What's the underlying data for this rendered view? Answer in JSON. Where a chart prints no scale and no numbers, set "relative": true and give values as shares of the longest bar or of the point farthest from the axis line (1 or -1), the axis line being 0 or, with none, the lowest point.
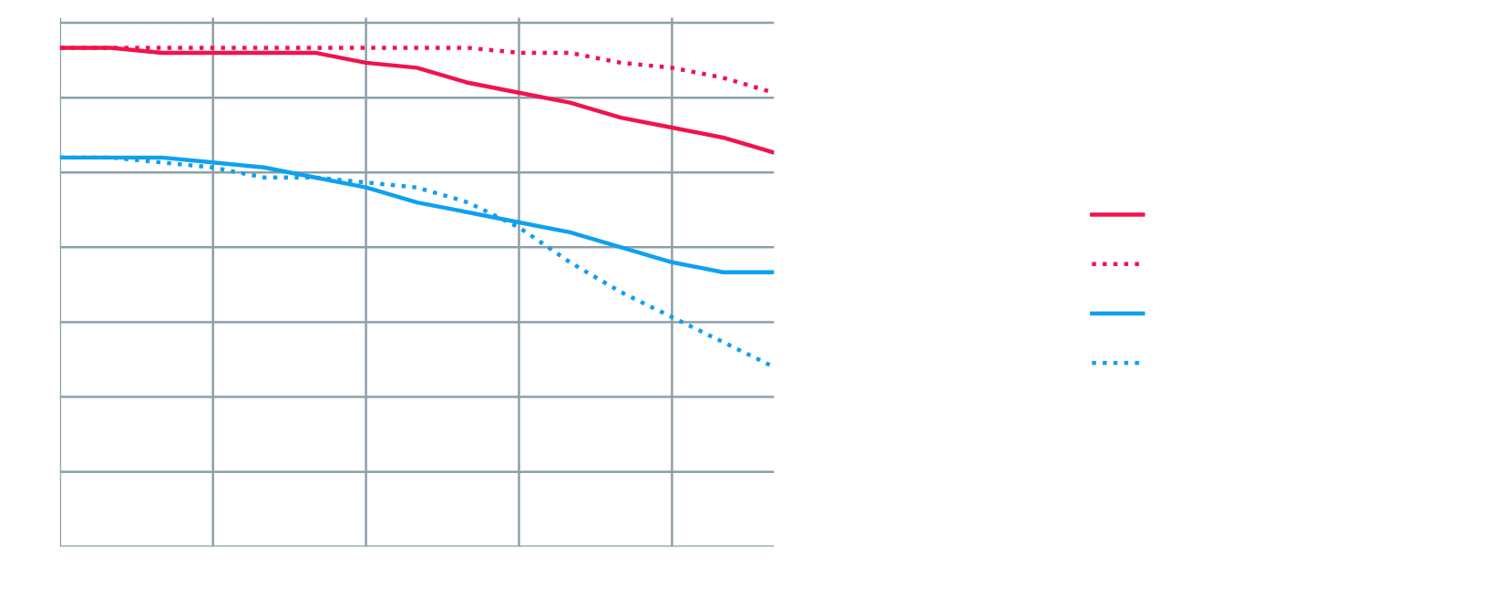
{
  "chart_data": {
    "type": "line",
    "relative": true,
    "categories": [
      null,
      null,
      null,
      null,
      null,
      null,
      null,
      null,
      null,
      null,
      null,
      null,
      null,
      null,
      null
    ],
    "series": [
      {
        "color": "#f0134d",
        "line_style": "solid",
        "values": [
          1.0,
          1.0,
          0.99,
          0.99,
          0.99,
          0.99,
          0.97,
          0.96,
          0.93,
          0.91,
          0.89,
          0.86,
          0.84,
          0.82,
          0.79
        ]
      },
      {
        "color": "#f0134d",
        "line_style": "dotted",
        "values": [
          1.0,
          1.0,
          1.0,
          1.0,
          1.0,
          1.0,
          1.0,
          1.0,
          1.0,
          0.99,
          0.99,
          0.97,
          0.96,
          0.94,
          0.91
        ]
      },
      {
        "color": "#0fa0f0",
        "line_style": "solid",
        "values": [
          0.78,
          0.78,
          0.78,
          0.77,
          0.76,
          0.74,
          0.72,
          0.69,
          0.67,
          0.65,
          0.63,
          0.6,
          0.57,
          0.55,
          0.55
        ]
      },
      {
        "color": "#0fa0f0",
        "line_style": "dotted",
        "values": [
          0.78,
          0.78,
          0.77,
          0.76,
          0.74,
          0.74,
          0.73,
          0.72,
          0.69,
          0.64,
          0.57,
          0.51,
          0.46,
          0.41,
          0.36
        ]
      }
    ],
    "grid": true,
    "marker": "none"
  }
}
